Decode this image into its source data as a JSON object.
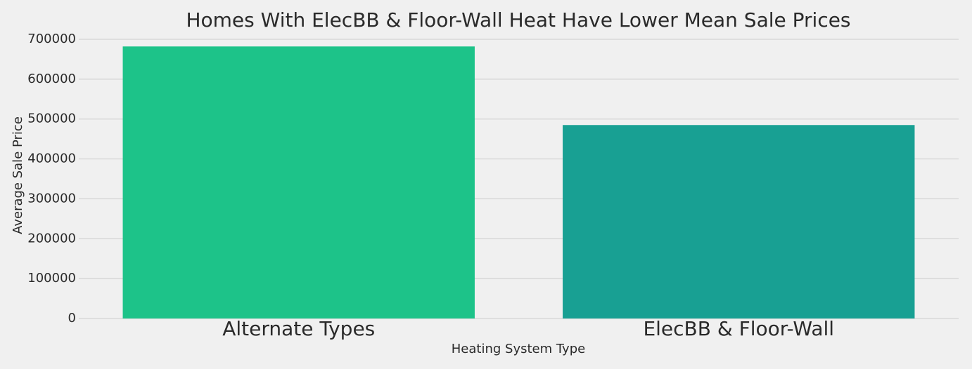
{
  "chart_data": {
    "type": "bar",
    "title": "Homes With ElecBB & Floor-Wall Heat Have Lower Mean Sale Prices",
    "x_label": "Heating System Type",
    "y_label": "Average Sale Price",
    "categories": [
      "Alternate Types",
      "ElecBB & Floor-Wall"
    ],
    "values": [
      682000,
      485000
    ],
    "colors": [
      "#1dc389",
      "#18a093"
    ],
    "ylim": [
      0,
      700000
    ],
    "yticks": [
      0,
      100000,
      200000,
      300000,
      400000,
      500000,
      600000,
      700000
    ],
    "grid": true
  }
}
